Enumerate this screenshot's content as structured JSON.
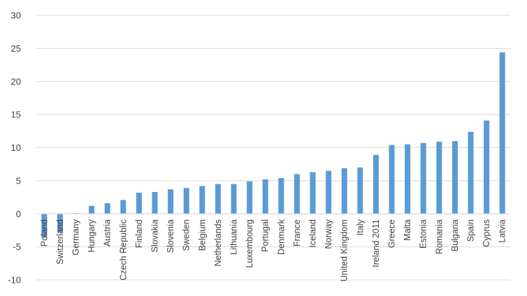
{
  "chart_data": {
    "type": "bar",
    "title": "",
    "xlabel": "",
    "ylabel": "",
    "ylim": [
      -10,
      30
    ],
    "yticks": [
      -10,
      -5,
      0,
      5,
      10,
      15,
      20,
      25,
      30
    ],
    "grid": true,
    "bar_color": "#5b9bd5",
    "categories": [
      "Poland",
      "Switzerland",
      "Germany",
      "Hungary",
      "Austria",
      "Czech Republic",
      "Finland",
      "Slovakia",
      "Slovenia",
      "Sweden",
      "Belgium",
      "Netherlands",
      "Lithuania",
      "Luxembourg",
      "Portugal",
      "Denmark",
      "France",
      "Iceland",
      "Norway",
      "United Kingdom",
      "Italy",
      "Ireland 2011",
      "Greece",
      "Malta",
      "Estonia",
      "Romania",
      "Bulgaria",
      "Spain",
      "Cyprus",
      "Latvia"
    ],
    "values": [
      -3.6,
      -2.8,
      0.1,
      1.2,
      1.6,
      2.1,
      3.2,
      3.3,
      3.7,
      3.9,
      4.2,
      4.5,
      4.5,
      4.9,
      5.2,
      5.4,
      6.0,
      6.3,
      6.5,
      6.9,
      7.0,
      8.9,
      10.4,
      10.5,
      10.7,
      10.9,
      11.0,
      12.4,
      14.1,
      24.4
    ]
  }
}
